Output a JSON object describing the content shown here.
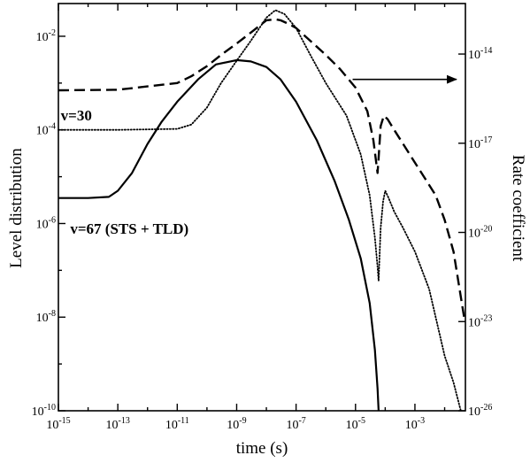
{
  "chart_data": {
    "type": "line",
    "xlabel": "time (s)",
    "ylabel": "Level distribution",
    "y2label": "Rate coefficient",
    "x_scale": "log",
    "y_scale": "log",
    "xlim": [
      1e-15,
      0.05
    ],
    "ylim": [
      1e-10,
      0.05
    ],
    "y2lim": [
      1e-26,
      5e-13
    ],
    "x_ticks": [
      {
        "value": 1e-15,
        "base": "10",
        "exp": "-15"
      },
      {
        "value": 1e-13,
        "base": "10",
        "exp": "-13"
      },
      {
        "value": 1e-11,
        "base": "10",
        "exp": "-11"
      },
      {
        "value": 1e-09,
        "base": "10",
        "exp": "-9"
      },
      {
        "value": 1e-07,
        "base": "10",
        "exp": "-7"
      },
      {
        "value": 1e-05,
        "base": "10",
        "exp": "-5"
      },
      {
        "value": 0.001,
        "base": "10",
        "exp": "-3"
      }
    ],
    "y_ticks": [
      {
        "value": 1e-10,
        "base": "10",
        "exp": "-10"
      },
      {
        "value": 1e-08,
        "base": "10",
        "exp": "-8"
      },
      {
        "value": 1e-06,
        "base": "10",
        "exp": "-6"
      },
      {
        "value": 0.0001,
        "base": "10",
        "exp": "-4"
      },
      {
        "value": 0.01,
        "base": "10",
        "exp": "-2"
      }
    ],
    "y2_ticks": [
      {
        "value": 1e-26,
        "base": "10",
        "exp": "-26"
      },
      {
        "value": 1e-23,
        "base": "10",
        "exp": "-23"
      },
      {
        "value": 1e-20,
        "base": "10",
        "exp": "-20"
      },
      {
        "value": 1e-17,
        "base": "10",
        "exp": "-17"
      },
      {
        "value": 1e-14,
        "base": "10",
        "exp": "-14"
      }
    ],
    "series": [
      {
        "style": "solid",
        "x": [
          1e-15,
          1e-14,
          5e-14,
          1e-13,
          3e-13,
          1e-12,
          3e-12,
          1e-11,
          5e-11,
          2e-10,
          1e-09,
          3e-09,
          1e-08,
          3e-08,
          1e-07,
          5e-07,
          2e-06,
          6e-06,
          1.5e-05,
          3e-05,
          4.5e-05,
          5.5e-05,
          6e-05
        ],
        "y": [
          3.5e-06,
          3.5e-06,
          3.7e-06,
          5e-06,
          1.2e-05,
          5e-05,
          0.00015,
          0.0004,
          0.0012,
          0.0025,
          0.0031,
          0.0029,
          0.0022,
          0.0012,
          0.0004,
          6e-05,
          8e-06,
          1.2e-06,
          1.8e-07,
          2e-08,
          2e-09,
          3e-10,
          1e-10
        ]
      },
      {
        "style": "dotted",
        "x": [
          1e-15,
          1e-13,
          1e-11,
          3e-11,
          1e-10,
          3e-10,
          1e-09,
          3e-09,
          1e-08,
          2e-08,
          4e-08,
          1e-07,
          3e-07,
          1e-06,
          5e-06,
          1.5e-05,
          3e-05,
          4.5e-05,
          5.5e-05,
          6e-05,
          7e-05,
          8.5e-05,
          0.0001,
          0.00013,
          0.0002,
          0.0004,
          0.001,
          0.003,
          0.01,
          0.02,
          0.035
        ],
        "y": [
          0.0001,
          0.0001,
          0.000105,
          0.00013,
          0.0003,
          0.001,
          0.003,
          0.008,
          0.025,
          0.036,
          0.03,
          0.015,
          0.004,
          0.001,
          0.0002,
          3e-05,
          4e-06,
          5e-07,
          1.2e-07,
          6e-08,
          8e-07,
          3e-06,
          5e-06,
          3.5e-06,
          1.8e-06,
          8e-07,
          2.5e-07,
          4e-08,
          1.5e-09,
          4e-10,
          1e-10
        ]
      },
      {
        "style": "dashed",
        "x": [
          1e-15,
          1e-13,
          1e-11,
          3e-11,
          1e-10,
          3e-10,
          1e-09,
          3e-09,
          6e-09,
          1e-08,
          2e-08,
          3e-08,
          6e-08,
          1e-07,
          3e-07,
          1e-06,
          3e-06,
          1e-05,
          2.5e-05,
          4e-05,
          5.5e-05,
          6e-05,
          7e-05,
          9e-05,
          0.00012,
          0.0002,
          0.0004,
          0.0008,
          0.002,
          0.005,
          0.01,
          0.02,
          0.045
        ],
        "y": [
          0.0007,
          0.00072,
          0.001,
          0.0014,
          0.0023,
          0.004,
          0.007,
          0.012,
          0.017,
          0.022,
          0.023,
          0.022,
          0.018,
          0.015,
          0.008,
          0.004,
          0.002,
          0.0008,
          0.00025,
          6e-05,
          1.2e-05,
          2.5e-05,
          0.00012,
          0.0002,
          0.00017,
          0.0001,
          5e-05,
          2.5e-05,
          1e-05,
          4e-06,
          1.2e-06,
          2.5e-07,
          1e-08
        ]
      }
    ],
    "annotations": [
      {
        "text": "v=30",
        "x": 1.2e-15,
        "y": 0.00016
      },
      {
        "text": "v=67 (STS + TLD)",
        "x": 2.5e-15,
        "y": 6e-07
      }
    ],
    "arrow": {
      "x_from": 8e-06,
      "x_to": 0.025,
      "y": 0.0012,
      "direction": "right"
    },
    "grid": false,
    "legend": "none"
  }
}
